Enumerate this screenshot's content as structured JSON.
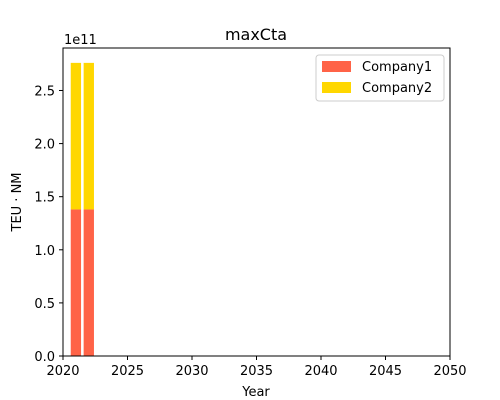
{
  "chart_data": {
    "type": "bar",
    "stacked": true,
    "title": "maxCta",
    "xlabel": "Year",
    "ylabel": "TEU · NM",
    "y_multiplier_label": "1e11",
    "y_scale": 100000000000,
    "x": [
      2021,
      2022
    ],
    "series": [
      {
        "name": "Company1",
        "color": "#FF6347",
        "values": [
          138000000000,
          138000000000
        ]
      },
      {
        "name": "Company2",
        "color": "#FFD700",
        "values": [
          138000000000,
          138000000000
        ]
      }
    ],
    "xlim": [
      2020,
      2050
    ],
    "ylim": [
      0,
      290000000000
    ],
    "xticks": [
      2020,
      2025,
      2030,
      2035,
      2040,
      2045,
      2050
    ],
    "yticks": [
      0.0,
      0.5,
      1.0,
      1.5,
      2.0,
      2.5
    ],
    "grid": false,
    "legend_position": "top-right"
  }
}
